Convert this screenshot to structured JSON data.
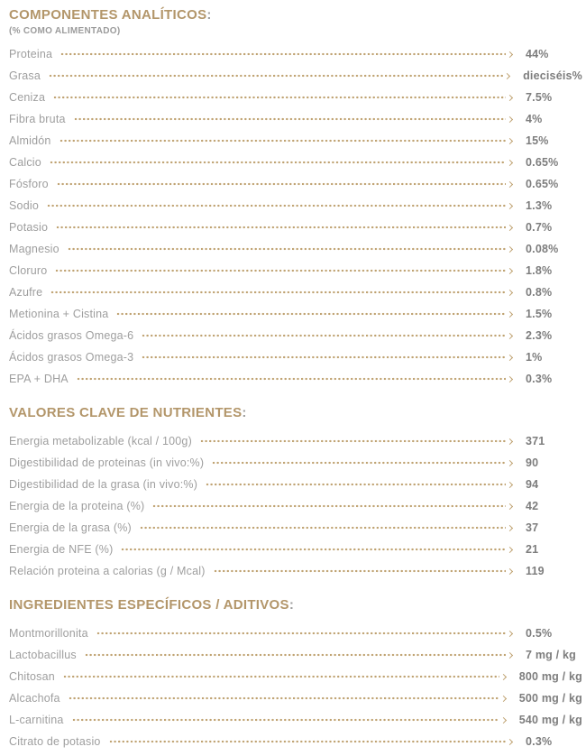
{
  "colors": {
    "accent_gold": "#b3966a",
    "leader_dots": "#bfa271",
    "label_gray": "#9e9e9e",
    "value_gray": "#7d7d7d"
  },
  "sections": [
    {
      "title": "COMPONENTES ANALÍTICOS",
      "colon": ":",
      "subtitle": "(% COMO ALIMENTADO)",
      "rows": [
        {
          "label": "Proteina",
          "value": "44%"
        },
        {
          "label": "Grasa",
          "value": "dieciséis%"
        },
        {
          "label": "Ceniza",
          "value": "7.5%"
        },
        {
          "label": "Fibra bruta",
          "value": "4%"
        },
        {
          "label": "Almidón",
          "value": "15%"
        },
        {
          "label": "Calcio",
          "value": "0.65%"
        },
        {
          "label": "Fósforo",
          "value": "0.65%"
        },
        {
          "label": "Sodio",
          "value": "1.3%"
        },
        {
          "label": "Potasio",
          "value": "0.7%"
        },
        {
          "label": "Magnesio",
          "value": "0.08%"
        },
        {
          "label": "Cloruro",
          "value": "1.8%"
        },
        {
          "label": "Azufre",
          "value": "0.8%"
        },
        {
          "label": "Metionina + Cistina",
          "value": "1.5%"
        },
        {
          "label": "Ácidos grasos Omega-6",
          "value": "2.3%"
        },
        {
          "label": "Ácidos grasos Omega-3",
          "value": "1%"
        },
        {
          "label": "EPA + DHA",
          "value": "0.3%"
        }
      ]
    },
    {
      "title": "VALORES CLAVE DE NUTRIENTES",
      "colon": ":",
      "rows": [
        {
          "label": "Energia metabolizable (kcal / 100g)",
          "value": "371"
        },
        {
          "label": "Digestibilidad de proteinas (in vivo:%)",
          "value": "90"
        },
        {
          "label": "Digestibilidad de la grasa (in vivo:%)",
          "value": "94"
        },
        {
          "label": "Energia de la proteina (%)",
          "value": "42"
        },
        {
          "label": "Energia de la grasa (%)",
          "value": "37"
        },
        {
          "label": "Energia de NFE (%)",
          "value": "21"
        },
        {
          "label": "Relación proteina a calorias (g / Mcal)",
          "value": "119"
        }
      ]
    },
    {
      "title": "INGREDIENTES ESPECÍFICOS / ADITIVOS",
      "colon": ":",
      "rows": [
        {
          "label": "Montmorillonita",
          "value": "0.5%"
        },
        {
          "label": "Lactobacillus",
          "value": "7 mg / kg"
        },
        {
          "label": "Chitosan",
          "value": "800 mg / kg"
        },
        {
          "label": "Alcachofa",
          "value": "500 mg / kg"
        },
        {
          "label": "L-carnitina",
          "value": "540 mg / kg"
        },
        {
          "label": "Citrato de potasio",
          "value": "0.3%"
        }
      ]
    }
  ]
}
